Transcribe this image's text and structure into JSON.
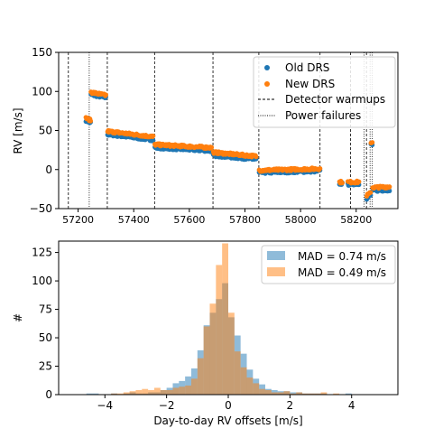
{
  "chart_data": [
    {
      "type": "scatter",
      "ylabel": "RV [m/s]",
      "xlim": [
        57130,
        58350
      ],
      "ylim": [
        -50,
        150
      ],
      "xticks": [
        "57200",
        "57400",
        "57600",
        "57800",
        "58000",
        "58200"
      ],
      "yticks": [
        "−50",
        "0",
        "50",
        "100",
        "150"
      ],
      "legend_position": "upper-right",
      "legend": {
        "old": "Old DRS",
        "new": "New DRS",
        "warmups": "Detector warmups",
        "failures": "Power failures"
      },
      "colors": {
        "old": "#1f77b4",
        "new": "#ff7f0e"
      },
      "detector_warmups": [
        57165,
        57305,
        57475,
        57685,
        57850,
        58070,
        58180,
        58237
      ],
      "power_failures": [
        57240,
        58228,
        58250,
        58258
      ],
      "segments": [
        {
          "x_range": [
            57228,
            57245
          ],
          "old": [
            63,
            60
          ],
          "new": [
            66,
            63
          ]
        },
        {
          "x_range": [
            57246,
            57300
          ],
          "old": [
            96,
            92
          ],
          "new": [
            99,
            95
          ]
        },
        {
          "x_range": [
            57306,
            57470
          ],
          "old": [
            45,
            38
          ],
          "new": [
            49,
            42
          ]
        },
        {
          "x_range": [
            57476,
            57680
          ],
          "old": [
            28,
            24
          ],
          "new": [
            32,
            28
          ]
        },
        {
          "x_range": [
            57686,
            57840
          ],
          "old": [
            18,
            13
          ],
          "new": [
            22,
            17
          ]
        },
        {
          "x_range": [
            57851,
            58070
          ],
          "old": [
            -4,
            -2
          ],
          "new": [
            -1,
            1
          ]
        },
        {
          "x_range": [
            58140,
            58150
          ],
          "old": [
            -18,
            -18
          ],
          "new": [
            -16,
            -16
          ]
        },
        {
          "x_range": [
            58170,
            58210
          ],
          "old": [
            -19,
            -18
          ],
          "new": [
            -16,
            -16
          ]
        },
        {
          "x_range": [
            58238,
            58252
          ],
          "old": [
            -37,
            -33
          ],
          "new": [
            -33,
            -30
          ]
        },
        {
          "x_range": [
            58253,
            58258
          ],
          "old": [
            32,
            32
          ],
          "new": [
            35,
            35
          ]
        },
        {
          "x_range": [
            58259,
            58320
          ],
          "old": [
            -27,
            -26
          ],
          "new": [
            -23,
            -22
          ]
        }
      ]
    },
    {
      "type": "histogram",
      "xlabel": "Day-to-day RV offsets [m/s]",
      "ylabel": "#",
      "xlim": [
        -5.5,
        5.5
      ],
      "ylim": [
        0,
        135
      ],
      "xticks": [
        "−4",
        "−2",
        "0",
        "2",
        "4"
      ],
      "yticks": [
        "0",
        "25",
        "50",
        "75",
        "100",
        "125"
      ],
      "legend_position": "upper-right",
      "bin_width": 0.2,
      "bin_start": -5.0,
      "series": [
        {
          "name": "MAD = 0.74 m/s",
          "color": "#1f77b4",
          "values": [
            0,
            0,
            1,
            1,
            0,
            0,
            1,
            0,
            1,
            2,
            1,
            1,
            2,
            2,
            4,
            6,
            10,
            12,
            16,
            23,
            39,
            61,
            72,
            84,
            98,
            68,
            52,
            36,
            22,
            14,
            9,
            5,
            4,
            3,
            3,
            2,
            2,
            1,
            1,
            1,
            1,
            0,
            0,
            0,
            1,
            0,
            0,
            0,
            0,
            0
          ]
        },
        {
          "name": "MAD = 0.49 m/s",
          "color": "#ff7f0e",
          "values": [
            0,
            0,
            0,
            0,
            0,
            0,
            1,
            1,
            2,
            3,
            4,
            5,
            4,
            6,
            4,
            4,
            6,
            7,
            8,
            14,
            32,
            60,
            80,
            114,
            133,
            72,
            38,
            24,
            15,
            10,
            5,
            4,
            2,
            2,
            3,
            1,
            2,
            1,
            1,
            1,
            2,
            0,
            1,
            0,
            0,
            0,
            0,
            0,
            0,
            0
          ]
        }
      ]
    }
  ]
}
